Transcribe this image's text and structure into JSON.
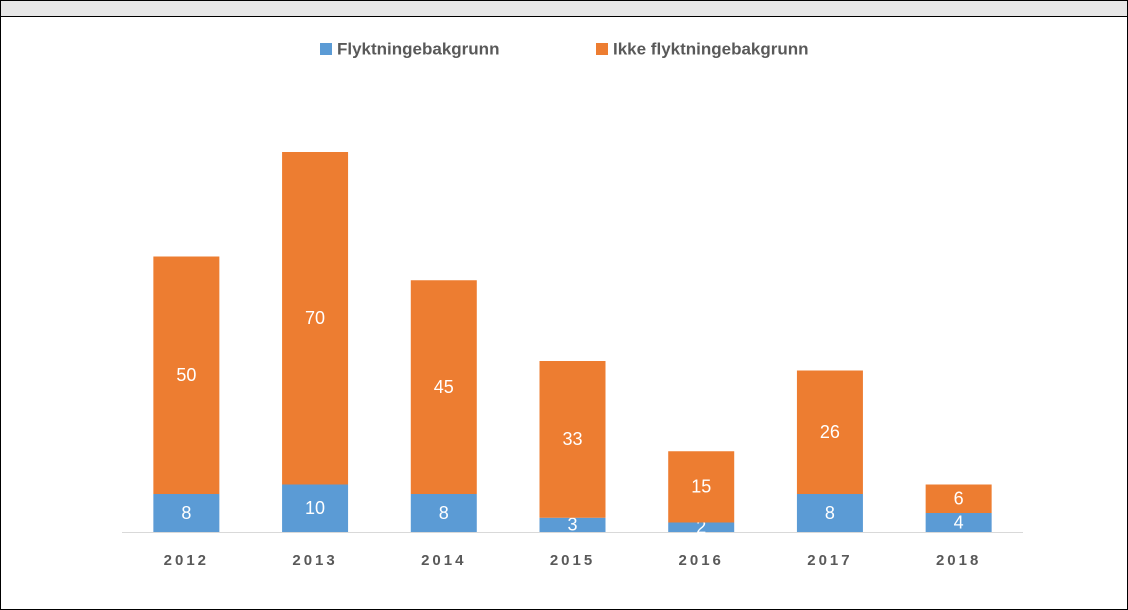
{
  "chart_data": {
    "type": "stacked-bar",
    "categories": [
      "2012",
      "2013",
      "2014",
      "2015",
      "2016",
      "2017",
      "2018"
    ],
    "series": [
      {
        "name": "Flyktningebakgrunn",
        "color": "#5b9bd5",
        "values": [
          8,
          10,
          8,
          3,
          2,
          8,
          4
        ]
      },
      {
        "name": "Ikke flyktningebakgrunn",
        "color": "#ed7d31",
        "values": [
          50,
          70,
          45,
          33,
          15,
          26,
          6
        ]
      }
    ],
    "legend": "top"
  }
}
